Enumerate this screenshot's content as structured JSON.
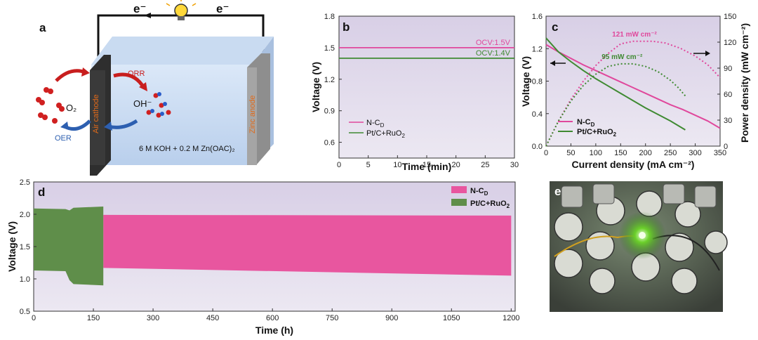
{
  "panel_a": {
    "letter": "a",
    "electron_left": "e⁻",
    "electron_right": "e⁻",
    "cathode_label": "Air cathode",
    "anode_label": "Zinc anode",
    "orr": "ORR",
    "oer": "OER",
    "o2": "O₂",
    "oh": "OH⁻",
    "electrolyte": "6 M KOH + 0.2 M Zn(OAC)₂",
    "bulb_icon": "light-bulb-icon"
  },
  "panel_e": {
    "letter": "e",
    "description_icon": "led-demo-photo"
  },
  "chart_data": [
    {
      "id": "b",
      "type": "line",
      "letter": "b",
      "xlabel": "Time (min)",
      "ylabel": "Voltage (V)",
      "xlim": [
        0,
        30
      ],
      "ylim": [
        0.45,
        1.8
      ],
      "xticks": [
        "0",
        "5",
        "10",
        "15",
        "20",
        "25",
        "30"
      ],
      "yticks": [
        "0.6",
        "0.9",
        "1.2",
        "1.5",
        "1.8"
      ],
      "series": [
        {
          "name": "N-C",
          "sub": "D",
          "color": "#e0489c",
          "x": [
            0,
            30
          ],
          "y": [
            1.5,
            1.5
          ],
          "annotation": "OCV:1.5V"
        },
        {
          "name": "Pt/C+RuO",
          "sub": "2",
          "color": "#3f8a32",
          "x": [
            0,
            30
          ],
          "y": [
            1.4,
            1.4
          ],
          "annotation": "OCV:1.4V"
        }
      ]
    },
    {
      "id": "c",
      "type": "line",
      "letter": "c",
      "xlabel": "Current density (mA cm⁻²)",
      "ylabel": "Voltage (V)",
      "y2label": "Power density (mW cm⁻²)",
      "xlim": [
        0,
        350
      ],
      "ylim": [
        0,
        1.6
      ],
      "y2lim": [
        0,
        150
      ],
      "xticks": [
        "0",
        "50",
        "100",
        "150",
        "200",
        "250",
        "300",
        "350"
      ],
      "yticks": [
        "0.0",
        "0.4",
        "0.8",
        "1.2",
        "1.6"
      ],
      "y2ticks": [
        "0",
        "30",
        "60",
        "90",
        "120",
        "150"
      ],
      "series": [
        {
          "name": "N-C",
          "sub": "D",
          "color": "#e0489c",
          "kind": "voltage",
          "x": [
            0,
            25,
            50,
            75,
            100,
            125,
            150,
            175,
            200,
            225,
            250,
            275,
            300,
            325,
            350
          ],
          "y": [
            1.25,
            1.16,
            1.08,
            1.0,
            0.93,
            0.86,
            0.79,
            0.72,
            0.65,
            0.58,
            0.51,
            0.45,
            0.38,
            0.31,
            0.22
          ]
        },
        {
          "name": "Pt/C+RuO",
          "sub": "2",
          "color": "#3f8a32",
          "kind": "voltage",
          "x": [
            0,
            25,
            50,
            75,
            100,
            125,
            150,
            175,
            200,
            225,
            250,
            280
          ],
          "y": [
            1.33,
            1.16,
            1.04,
            0.93,
            0.83,
            0.74,
            0.65,
            0.56,
            0.47,
            0.39,
            0.31,
            0.2
          ]
        },
        {
          "name": "N-C power",
          "color": "#e0489c",
          "kind": "power",
          "peak_label": "121 mW cm⁻²",
          "x": [
            0,
            25,
            50,
            75,
            100,
            125,
            150,
            175,
            200,
            215,
            240,
            270,
            300,
            325,
            350
          ],
          "y": [
            0,
            29,
            54,
            75,
            93,
            107,
            118,
            121,
            121,
            121,
            119,
            113,
            104,
            94,
            79
          ]
        },
        {
          "name": "Pt/C+RuO2 power",
          "color": "#3f8a32",
          "kind": "power",
          "peak_label": "95 mW cm⁻²",
          "x": [
            0,
            25,
            50,
            75,
            100,
            125,
            150,
            175,
            200,
            225,
            250,
            265,
            280
          ],
          "y": [
            0,
            29,
            52,
            70,
            83,
            92,
            95,
            95,
            92,
            86,
            76,
            68,
            58
          ]
        }
      ]
    },
    {
      "id": "d",
      "type": "area",
      "letter": "d",
      "xlabel": "Time (h)",
      "ylabel": "Voltage (V)",
      "xlim": [
        0,
        1210
      ],
      "ylim": [
        0.5,
        2.5
      ],
      "xticks": [
        "0",
        "150",
        "300",
        "450",
        "600",
        "750",
        "900",
        "1050",
        "1200"
      ],
      "yticks": [
        "0.5",
        "1.0",
        "1.5",
        "2.0",
        "2.5"
      ],
      "series": [
        {
          "name": "N-C",
          "sub": "D",
          "color": "#e8569f",
          "x": [
            175,
            1200
          ],
          "upper": [
            1.99,
            1.98
          ],
          "lower": [
            1.17,
            1.05
          ]
        },
        {
          "name": "Pt/C+RuO",
          "sub": "2",
          "color": "#5f8e4a",
          "x": [
            0,
            80,
            90,
            100,
            175
          ],
          "upper": [
            2.09,
            2.08,
            2.06,
            2.1,
            2.12
          ],
          "lower": [
            1.13,
            1.12,
            0.98,
            0.92,
            0.9
          ]
        }
      ]
    }
  ]
}
